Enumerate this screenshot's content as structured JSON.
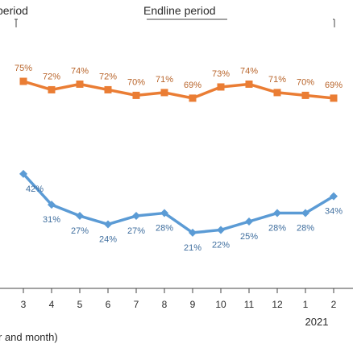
{
  "periods": {
    "left": "period",
    "right": "Endline period"
  },
  "x_axis": {
    "label": "r and month)",
    "year": "2021"
  },
  "chart_data": {
    "type": "line",
    "categories": [
      "3",
      "4",
      "5",
      "6",
      "7",
      "8",
      "9",
      "10",
      "11",
      "12",
      "1",
      "2"
    ],
    "ylim": [
      0,
      100
    ],
    "grid": false,
    "series": [
      {
        "color": "#ea7d34",
        "values": [
          75,
          72,
          74,
          72,
          70,
          71,
          69,
          73,
          74,
          71,
          70,
          69
        ],
        "labels": [
          "75%",
          "72%",
          "74%",
          "72%",
          "70%",
          "71%",
          "69%",
          "73%",
          "74%",
          "71%",
          "70%",
          "69%"
        ]
      },
      {
        "color": "#5b9bd5",
        "values": [
          42,
          31,
          27,
          24,
          27,
          28,
          21,
          22,
          25,
          28,
          28,
          34
        ],
        "labels": [
          "42%",
          "31%",
          "27%",
          "24%",
          "27%",
          "28%",
          "21%",
          "22%",
          "25%",
          "28%",
          "28%",
          "34%"
        ]
      }
    ]
  }
}
